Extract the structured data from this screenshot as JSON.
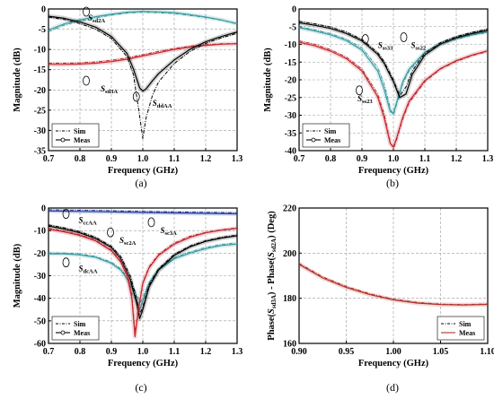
{
  "figure": {
    "panels": [
      {
        "id": "a",
        "panel_label": "(a)",
        "chart_data": {
          "type": "line",
          "xlabel": "Frequency (GHz)",
          "ylabel": "Magnitude (dB)",
          "xlim": [
            0.7,
            1.3
          ],
          "ylim": [
            -35,
            0
          ],
          "xticks": [
            "0.7",
            "0.8",
            "0.9",
            "1.0",
            "1.1",
            "1.2",
            "1.3"
          ],
          "yticks": [
            "-35",
            "-30",
            "-25",
            "-20",
            "-15",
            "-10",
            "-5",
            "0"
          ],
          "grid": true,
          "legend": {
            "placement": "bottom-left",
            "entries": [
              {
                "label": "Sim",
                "style": "dashdot"
              },
              {
                "label": "Meas",
                "style": "solid"
              }
            ]
          },
          "annotations": [
            {
              "text": "S",
              "sub": "sd2A",
              "x": 0.82,
              "y": -2.0
            },
            {
              "text": "S",
              "sub": "sd3A",
              "x": 0.86,
              "y": -19.5
            },
            {
              "text": "S",
              "sub": "ddAA",
              "x": 1.025,
              "y": -23.0
            }
          ],
          "series": [
            {
              "kind": "sd2A",
              "color": "#3a9aa0",
              "x": [
                0.7,
                0.75,
                0.8,
                0.85,
                0.9,
                0.95,
                1.0,
                1.05,
                1.1,
                1.15,
                1.2,
                1.25,
                1.3
              ],
              "sim": [
                -5.6,
                -4.0,
                -3.0,
                -2.2,
                -1.5,
                -1.0,
                -0.8,
                -0.9,
                -1.1,
                -1.6,
                -2.1,
                -2.8,
                -3.7
              ],
              "meas": [
                -5.2,
                -3.7,
                -2.7,
                -1.9,
                -1.3,
                -0.8,
                -0.6,
                -0.7,
                -0.9,
                -1.4,
                -2.0,
                -2.7,
                -3.6
              ]
            },
            {
              "kind": "sd3A",
              "color": "#c1272d",
              "x": [
                0.7,
                0.75,
                0.8,
                0.85,
                0.9,
                0.95,
                1.0,
                1.05,
                1.1,
                1.15,
                1.2,
                1.25,
                1.3
              ],
              "sim": [
                -13.4,
                -13.4,
                -13.3,
                -13.1,
                -12.7,
                -12.1,
                -11.3,
                -10.5,
                -9.8,
                -9.2,
                -8.8,
                -8.6,
                -8.5
              ],
              "meas": [
                -13.7,
                -13.7,
                -13.6,
                -13.4,
                -13.0,
                -12.4,
                -11.6,
                -10.8,
                -10.0,
                -9.4,
                -9.0,
                -8.7,
                -8.6
              ]
            },
            {
              "kind": "ddAA",
              "color": "#000000",
              "x": [
                0.7,
                0.75,
                0.8,
                0.85,
                0.9,
                0.95,
                0.97,
                0.99,
                1.0,
                1.01,
                1.03,
                1.05,
                1.1,
                1.15,
                1.2,
                1.25,
                1.3
              ],
              "sim": [
                -2.0,
                -2.6,
                -3.6,
                -5.0,
                -7.3,
                -11.8,
                -16.2,
                -26.5,
                -32.0,
                -27.0,
                -21.5,
                -18.0,
                -13.5,
                -10.5,
                -8.5,
                -7.1,
                -6.0
              ],
              "meas": [
                -1.8,
                -2.3,
                -3.2,
                -4.5,
                -6.8,
                -11.0,
                -14.8,
                -19.5,
                -20.3,
                -19.8,
                -17.8,
                -16.0,
                -12.6,
                -10.0,
                -8.1,
                -6.8,
                -5.7
              ]
            }
          ]
        }
      },
      {
        "id": "b",
        "panel_label": "(b)",
        "chart_data": {
          "type": "line",
          "xlabel": "Frequency (GHz)",
          "ylabel": "Magnitude (dB)",
          "xlim": [
            0.7,
            1.3
          ],
          "ylim": [
            -40,
            0
          ],
          "xticks": [
            "0.7",
            "0.8",
            "0.9",
            "1.0",
            "1.1",
            "1.2",
            "1.3"
          ],
          "yticks": [
            "-40",
            "-35",
            "-30",
            "-25",
            "-20",
            "-15",
            "-10",
            "-5",
            "0"
          ],
          "grid": true,
          "legend": {
            "placement": "bottom-left",
            "entries": [
              {
                "label": "Sim",
                "style": "dashdot"
              },
              {
                "label": "Meas",
                "style": "solid"
              }
            ]
          },
          "annotations": [
            {
              "text": "S",
              "sub": "ss33",
              "x": 0.945,
              "y": -10.0
            },
            {
              "text": "S",
              "sub": "ss22",
              "x": 1.05,
              "y": -10.0
            },
            {
              "text": "S",
              "sub": "ss23",
              "x": 0.88,
              "y": -25.0
            }
          ],
          "series": [
            {
              "kind": "ss33",
              "color": "#3a9aa0",
              "x": [
                0.7,
                0.75,
                0.8,
                0.85,
                0.9,
                0.95,
                0.97,
                0.99,
                1.0,
                1.01,
                1.03,
                1.05,
                1.1,
                1.15,
                1.2,
                1.25,
                1.3
              ],
              "sim": [
                -5.0,
                -5.9,
                -7.0,
                -8.5,
                -11.0,
                -16.5,
                -21.0,
                -28.0,
                -30.0,
                -27.0,
                -21.0,
                -17.5,
                -12.5,
                -10.0,
                -8.5,
                -7.4,
                -6.6
              ],
              "meas": [
                -5.3,
                -6.2,
                -7.3,
                -8.9,
                -11.6,
                -17.5,
                -22.5,
                -29.0,
                -29.5,
                -26.5,
                -20.5,
                -17.0,
                -12.2,
                -9.8,
                -8.3,
                -7.2,
                -6.4
              ]
            },
            {
              "kind": "ss22",
              "color": "#000000",
              "x": [
                0.7,
                0.75,
                0.8,
                0.85,
                0.9,
                0.95,
                0.97,
                1.0,
                1.02,
                1.04,
                1.06,
                1.1,
                1.15,
                1.2,
                1.25,
                1.3
              ],
              "sim": [
                -3.5,
                -4.2,
                -5.1,
                -6.5,
                -8.6,
                -12.3,
                -14.8,
                -20.0,
                -24.5,
                -22.0,
                -17.5,
                -12.5,
                -9.5,
                -7.8,
                -6.6,
                -5.7
              ],
              "meas": [
                -3.9,
                -4.6,
                -5.5,
                -6.9,
                -9.0,
                -12.8,
                -15.3,
                -20.5,
                -25.0,
                -24.0,
                -18.5,
                -13.0,
                -9.9,
                -8.1,
                -6.9,
                -6.0
              ]
            },
            {
              "kind": "ss23",
              "color": "#c1272d",
              "x": [
                0.7,
                0.75,
                0.8,
                0.85,
                0.9,
                0.95,
                0.97,
                0.99,
                1.0,
                1.01,
                1.03,
                1.05,
                1.1,
                1.15,
                1.2,
                1.25,
                1.3
              ],
              "sim": [
                -9.0,
                -10.0,
                -11.5,
                -13.6,
                -17.0,
                -24.0,
                -29.5,
                -37.5,
                -39.5,
                -37.0,
                -31.0,
                -26.5,
                -20.5,
                -17.0,
                -14.8,
                -13.2,
                -12.0
              ],
              "meas": [
                -9.4,
                -10.4,
                -11.9,
                -14.0,
                -17.5,
                -24.8,
                -30.5,
                -38.0,
                -39.0,
                -36.5,
                -30.5,
                -26.0,
                -20.2,
                -16.8,
                -14.6,
                -13.0,
                -11.8
              ]
            }
          ]
        }
      },
      {
        "id": "c",
        "panel_label": "(c)",
        "chart_data": {
          "type": "line",
          "xlabel": "Frequency (GHz)",
          "ylabel": "Magnitude (dB)",
          "xlim": [
            0.7,
            1.3
          ],
          "ylim": [
            -60,
            0
          ],
          "xticks": [
            "0.7",
            "0.8",
            "0.9",
            "1.0",
            "1.1",
            "1.2",
            "1.3"
          ],
          "yticks": [
            "-60",
            "-50",
            "-40",
            "-30",
            "-20",
            "-10",
            "0"
          ],
          "grid": true,
          "legend": {
            "placement": "bottom-left",
            "entries": [
              {
                "label": "Sim",
                "style": "dashdot"
              },
              {
                "label": "Meas",
                "style": "solid"
              }
            ]
          },
          "annotations": [
            {
              "text": "S",
              "sub": "ccAA",
              "x": 0.79,
              "y": -5.0
            },
            {
              "text": "S",
              "sub": "sc2A",
              "x": 0.92,
              "y": -14.0
            },
            {
              "text": "S",
              "sub": "sc3A",
              "x": 1.05,
              "y": -9.5
            },
            {
              "text": "S",
              "sub": "dcAA",
              "x": 0.79,
              "y": -26.5
            }
          ],
          "series": [
            {
              "kind": "ccAA",
              "color": "#1f3a9a",
              "x": [
                0.7,
                0.8,
                0.9,
                1.0,
                1.1,
                1.2,
                1.3
              ],
              "sim": [
                -0.8,
                -1.0,
                -1.2,
                -1.5,
                -1.7,
                -1.9,
                -2.1
              ],
              "meas": [
                -1.3,
                -1.5,
                -1.7,
                -2.0,
                -2.2,
                -2.4,
                -2.6
              ]
            },
            {
              "kind": "dcAA",
              "color": "#3a9aa0",
              "x": [
                0.7,
                0.75,
                0.8,
                0.85,
                0.9,
                0.93,
                0.96,
                0.98,
                0.99,
                1.0,
                1.02,
                1.05,
                1.1,
                1.15,
                1.2,
                1.25,
                1.3
              ],
              "sim": [
                -20.0,
                -20.0,
                -20.4,
                -21.5,
                -24.0,
                -27.0,
                -32.5,
                -38.0,
                -42.0,
                -40.0,
                -33.0,
                -27.0,
                -22.0,
                -19.5,
                -17.5,
                -16.2,
                -15.5
              ],
              "meas": [
                -20.3,
                -20.3,
                -20.8,
                -21.8,
                -24.5,
                -27.5,
                -33.5,
                -40.5,
                -45.0,
                -41.0,
                -33.5,
                -27.5,
                -22.5,
                -20.0,
                -18.0,
                -16.6,
                -16.0
              ]
            },
            {
              "kind": "sc2A",
              "color": "#000000",
              "x": [
                0.7,
                0.75,
                0.8,
                0.85,
                0.9,
                0.93,
                0.96,
                0.98,
                0.99,
                1.0,
                1.02,
                1.05,
                1.1,
                1.15,
                1.2,
                1.25,
                1.3
              ],
              "sim": [
                -7.5,
                -8.8,
                -10.5,
                -13.0,
                -17.0,
                -21.5,
                -30.0,
                -40.0,
                -47.0,
                -44.0,
                -34.0,
                -27.0,
                -20.5,
                -16.8,
                -14.5,
                -13.0,
                -12.0
              ],
              "meas": [
                -8.0,
                -9.3,
                -11.0,
                -13.5,
                -17.5,
                -22.5,
                -31.5,
                -42.0,
                -49.0,
                -45.0,
                -35.0,
                -27.5,
                -21.0,
                -17.2,
                -14.8,
                -13.3,
                -12.3
              ]
            },
            {
              "kind": "sc3A",
              "color": "#c1272d",
              "x": [
                0.7,
                0.75,
                0.8,
                0.85,
                0.9,
                0.93,
                0.95,
                0.965,
                0.975,
                0.985,
                1.0,
                1.02,
                1.05,
                1.1,
                1.15,
                1.2,
                1.25,
                1.3
              ],
              "sim": [
                -9.0,
                -10.2,
                -11.8,
                -14.2,
                -18.5,
                -23.5,
                -29.0,
                -38.0,
                -55.0,
                -45.0,
                -33.0,
                -26.0,
                -20.5,
                -15.5,
                -12.5,
                -10.8,
                -9.6,
                -8.8
              ],
              "meas": [
                -9.4,
                -10.6,
                -12.2,
                -14.6,
                -19.0,
                -24.0,
                -30.0,
                -40.0,
                -57.0,
                -46.0,
                -33.5,
                -26.5,
                -21.0,
                -16.0,
                -13.0,
                -11.0,
                -9.8,
                -9.0
              ]
            }
          ]
        }
      },
      {
        "id": "d",
        "panel_label": "(d)",
        "chart_data": {
          "type": "line",
          "xlabel": "Frequency (GHz)",
          "ylabel_parts": [
            "Phase(",
            "S",
            "sd3A",
            ") - Phase(",
            "S",
            "sd2A",
            ")  (Deg)"
          ],
          "xlim": [
            0.9,
            1.1
          ],
          "ylim": [
            160,
            220
          ],
          "xticks": [
            "0.90",
            "0.95",
            "1.00",
            "1.05",
            "1.10"
          ],
          "yticks": [
            "160",
            "180",
            "200",
            "220"
          ],
          "grid": true,
          "legend": {
            "placement": "bottom-right",
            "entries": [
              {
                "label": "Sim",
                "style": "dashdot"
              },
              {
                "label": "Meas",
                "style": "solid"
              }
            ]
          },
          "annotations": [],
          "series": [
            {
              "kind": "phase",
              "color": "#b03028",
              "x": [
                0.9,
                0.925,
                0.95,
                0.975,
                1.0,
                1.025,
                1.05,
                1.075,
                1.1
              ],
              "sim": [
                195.5,
                189.5,
                185.2,
                182.0,
                179.6,
                178.2,
                177.4,
                177.2,
                177.5
              ],
              "meas": [
                195.0,
                189.0,
                184.8,
                181.6,
                179.3,
                177.9,
                177.2,
                177.0,
                177.3
              ]
            }
          ]
        }
      }
    ]
  }
}
